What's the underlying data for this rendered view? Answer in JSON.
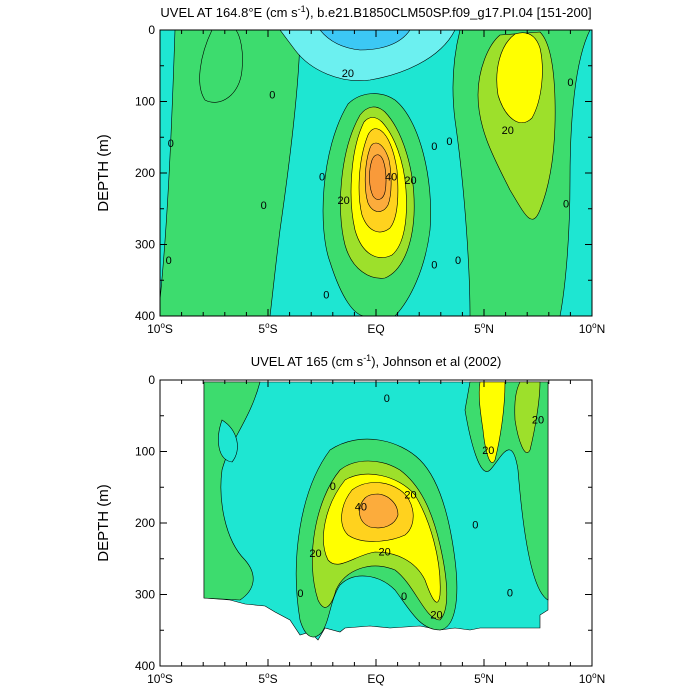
{
  "chart_data": [
    {
      "type": "contour",
      "title_pre": "UVEL AT 164.8°E (cm s",
      "title_sup": "-1",
      "title_post": "), b.e21.B1850CLM50SP.f09_g17.PI.04 [151-200]",
      "ylabel": "DEPTH (m)",
      "xlim": [
        -10,
        10
      ],
      "ylim": [
        0,
        400
      ],
      "y_reversed": true,
      "yticks": [
        "0",
        "100",
        "200",
        "300",
        "400"
      ],
      "xticks": [
        {
          "base": "10",
          "sup": "o",
          "hemi": "S",
          "value": -10
        },
        {
          "base": "5",
          "sup": "o",
          "hemi": "S",
          "value": -5
        },
        {
          "base": "EQ",
          "sup": "",
          "hemi": "",
          "value": 0
        },
        {
          "base": "5",
          "sup": "o",
          "hemi": "N",
          "value": 5
        },
        {
          "base": "10",
          "sup": "o",
          "hemi": "N",
          "value": 10
        }
      ],
      "contour_labels": [
        {
          "text": "20",
          "lat": -1.3,
          "depth": 60
        },
        {
          "text": "0",
          "lat": -4.8,
          "depth": 90
        },
        {
          "text": "0",
          "lat": -9.5,
          "depth": 158
        },
        {
          "text": "0",
          "lat": -5.2,
          "depth": 245
        },
        {
          "text": "0",
          "lat": -9.6,
          "depth": 322
        },
        {
          "text": "0",
          "lat": -2.5,
          "depth": 205
        },
        {
          "text": "0",
          "lat": -2.3,
          "depth": 370
        },
        {
          "text": "20",
          "lat": -1.5,
          "depth": 238
        },
        {
          "text": "40",
          "lat": 0.7,
          "depth": 205
        },
        {
          "text": "20",
          "lat": 1.6,
          "depth": 210
        },
        {
          "text": "0",
          "lat": 2.7,
          "depth": 162
        },
        {
          "text": "0",
          "lat": 3.4,
          "depth": 155
        },
        {
          "text": "0",
          "lat": 2.7,
          "depth": 328
        },
        {
          "text": "0",
          "lat": 3.8,
          "depth": 322
        },
        {
          "text": "20",
          "lat": 6.1,
          "depth": 140
        },
        {
          "text": "0",
          "lat": 9.0,
          "depth": 73
        },
        {
          "text": "0",
          "lat": 8.8,
          "depth": 243
        }
      ]
    },
    {
      "type": "contour",
      "title_pre": "UVEL AT 165 (cm s",
      "title_sup": "-1",
      "title_post": "), Johnson et al (2002)",
      "ylabel": "DEPTH (m)",
      "xlim": [
        -10,
        10
      ],
      "ylim": [
        0,
        400
      ],
      "y_reversed": true,
      "yticks": [
        "0",
        "100",
        "200",
        "300",
        "400"
      ],
      "xticks": [
        {
          "base": "10",
          "sup": "o",
          "hemi": "S",
          "value": -10
        },
        {
          "base": "5",
          "sup": "o",
          "hemi": "S",
          "value": -5
        },
        {
          "base": "EQ",
          "sup": "",
          "hemi": "",
          "value": 0
        },
        {
          "base": "5",
          "sup": "o",
          "hemi": "N",
          "value": 5
        },
        {
          "base": "10",
          "sup": "o",
          "hemi": "N",
          "value": 10
        }
      ],
      "data_extent": {
        "lat": [
          -8,
          8
        ],
        "depth": [
          5,
          350
        ]
      },
      "contour_labels": [
        {
          "text": "0",
          "lat": 0.5,
          "depth": 25
        },
        {
          "text": "20",
          "lat": 7.5,
          "depth": 55
        },
        {
          "text": "20",
          "lat": 5.2,
          "depth": 98
        },
        {
          "text": "20",
          "lat": 1.6,
          "depth": 160
        },
        {
          "text": "0",
          "lat": -2.0,
          "depth": 148
        },
        {
          "text": "40",
          "lat": -0.7,
          "depth": 177
        },
        {
          "text": "0",
          "lat": 4.6,
          "depth": 202
        },
        {
          "text": "20",
          "lat": -2.8,
          "depth": 242
        },
        {
          "text": "20",
          "lat": 0.4,
          "depth": 240
        },
        {
          "text": "0",
          "lat": -3.5,
          "depth": 298
        },
        {
          "text": "0",
          "lat": 1.3,
          "depth": 302
        },
        {
          "text": "20",
          "lat": 2.8,
          "depth": 328
        },
        {
          "text": "0",
          "lat": 6.2,
          "depth": 297
        }
      ]
    }
  ]
}
